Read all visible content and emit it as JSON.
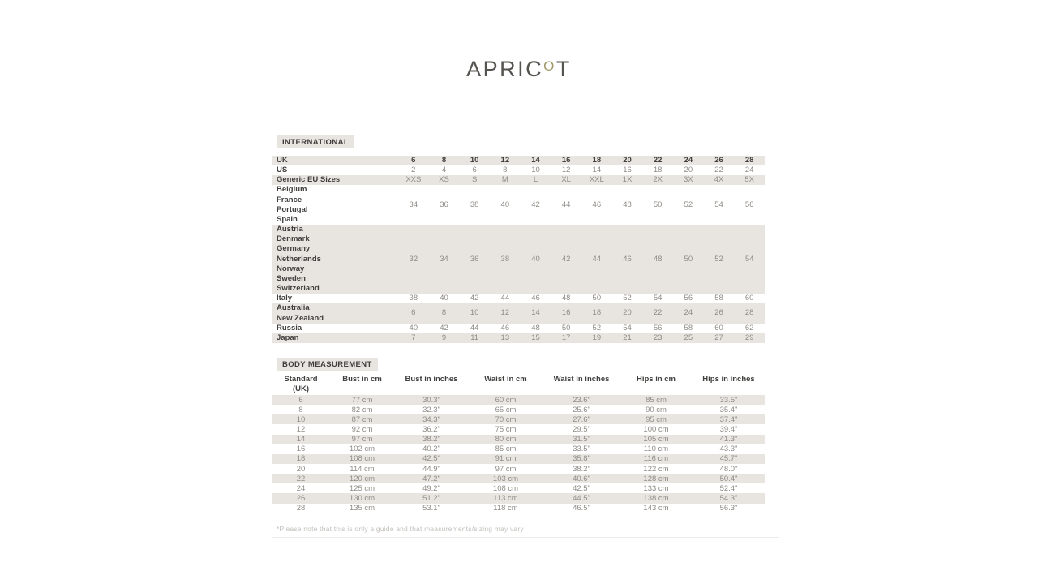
{
  "brand": {
    "logo_part1": "APRIC",
    "logo_part2": "O",
    "logo_part3": "T",
    "accent_color": "#a09767"
  },
  "colors": {
    "shaded_row": "#e8e5e1",
    "text_dark": "#403f3d",
    "text_value": "#8f8b86"
  },
  "sections": {
    "international": {
      "title": "INTERNATIONAL",
      "rows": [
        {
          "labels": [
            "UK"
          ],
          "values": [
            "6",
            "8",
            "10",
            "12",
            "14",
            "16",
            "18",
            "20",
            "22",
            "24",
            "26",
            "28"
          ],
          "shaded": true,
          "bold_values": true
        },
        {
          "labels": [
            "US"
          ],
          "values": [
            "2",
            "4",
            "6",
            "8",
            "10",
            "12",
            "14",
            "16",
            "18",
            "20",
            "22",
            "24"
          ],
          "shaded": false,
          "bold_values": false
        },
        {
          "labels": [
            "Generic EU Sizes"
          ],
          "values": [
            "XXS",
            "XS",
            "S",
            "M",
            "L",
            "XL",
            "XXL",
            "1X",
            "2X",
            "3X",
            "4X",
            "5X"
          ],
          "shaded": true,
          "bold_values": false
        },
        {
          "labels": [
            "Belgium",
            "France",
            "Portugal",
            "Spain"
          ],
          "values": [
            "34",
            "36",
            "38",
            "40",
            "42",
            "44",
            "46",
            "48",
            "50",
            "52",
            "54",
            "56"
          ],
          "shaded": false,
          "bold_values": false
        },
        {
          "labels": [
            "Austria",
            "Denmark",
            "Germany",
            "Netherlands",
            "Norway",
            "Sweden",
            "Switzerland"
          ],
          "values": [
            "32",
            "34",
            "36",
            "38",
            "40",
            "42",
            "44",
            "46",
            "48",
            "50",
            "52",
            "54"
          ],
          "shaded": true,
          "bold_values": false
        },
        {
          "labels": [
            "Italy"
          ],
          "values": [
            "38",
            "40",
            "42",
            "44",
            "46",
            "48",
            "50",
            "52",
            "54",
            "56",
            "58",
            "60"
          ],
          "shaded": false,
          "bold_values": false
        },
        {
          "labels": [
            "Australia",
            "New Zealand"
          ],
          "values": [
            "6",
            "8",
            "10",
            "12",
            "14",
            "16",
            "18",
            "20",
            "22",
            "24",
            "26",
            "28"
          ],
          "shaded": true,
          "bold_values": false
        },
        {
          "labels": [
            "Russia"
          ],
          "values": [
            "40",
            "42",
            "44",
            "46",
            "48",
            "50",
            "52",
            "54",
            "56",
            "58",
            "60",
            "62"
          ],
          "shaded": false,
          "bold_values": false
        },
        {
          "labels": [
            "Japan"
          ],
          "values": [
            "7",
            "9",
            "11",
            "13",
            "15",
            "17",
            "19",
            "21",
            "23",
            "25",
            "27",
            "29"
          ],
          "shaded": true,
          "bold_values": false
        }
      ]
    },
    "body_measurement": {
      "title": "BODY MEASUREMENT",
      "headers": [
        [
          "Standard",
          "(UK)"
        ],
        [
          "Bust in cm"
        ],
        [
          "Bust in inches"
        ],
        [
          "Waist in cm"
        ],
        [
          "Waist in inches"
        ],
        [
          "Hips in cm"
        ],
        [
          "Hips in inches"
        ]
      ],
      "rows": [
        [
          "6",
          "77 cm",
          "30.3\"",
          "60 cm",
          "23.6\"",
          "85 cm",
          "33.5\""
        ],
        [
          "8",
          "82 cm",
          "32.3\"",
          "65 cm",
          "25.6\"",
          "90 cm",
          "35.4\""
        ],
        [
          "10",
          "87 cm",
          "34.3\"",
          "70 cm",
          "27.6\"",
          "95 cm",
          "37.4\""
        ],
        [
          "12",
          "92 cm",
          "36.2\"",
          "75 cm",
          "29.5\"",
          "100 cm",
          "39.4\""
        ],
        [
          "14",
          "97 cm",
          "38.2\"",
          "80 cm",
          "31.5\"",
          "105 cm",
          "41.3\""
        ],
        [
          "16",
          "102 cm",
          "40.2\"",
          "85 cm",
          "33.5\"",
          "110 cm",
          "43.3\""
        ],
        [
          "18",
          "108 cm",
          "42.5\"",
          "91 cm",
          "35.8\"",
          "116 cm",
          "45.7\""
        ],
        [
          "20",
          "114 cm",
          "44.9\"",
          "97 cm",
          "38.2\"",
          "122 cm",
          "48.0\""
        ],
        [
          "22",
          "120 cm",
          "47.2\"",
          "103 cm",
          "40.6\"",
          "128 cm",
          "50.4\""
        ],
        [
          "24",
          "125 cm",
          "49.2\"",
          "108 cm",
          "42.5\"",
          "133 cm",
          "52.4\""
        ],
        [
          "26",
          "130 cm",
          "51.2\"",
          "113 cm",
          "44.5\"",
          "138 cm",
          "54.3\""
        ],
        [
          "28",
          "135 cm",
          "53.1\"",
          "118 cm",
          "46.5\"",
          "143 cm",
          "56.3\""
        ]
      ]
    }
  },
  "footnote": "*Please note that this is only a guide and that measurements/sizing may vary"
}
